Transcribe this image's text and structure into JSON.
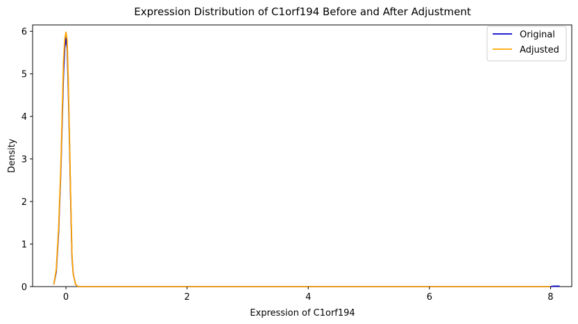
{
  "chart_data": {
    "type": "line",
    "title": "Expression Distribution of C1orf194 Before and After Adjustment",
    "xlabel": "Expression of C1orf194",
    "ylabel": "Density",
    "xlim": [
      -0.55,
      8.35
    ],
    "ylim": [
      0,
      6.15
    ],
    "xticks": [
      0,
      2,
      4,
      6,
      8
    ],
    "yticks": [
      0,
      1,
      2,
      3,
      4,
      5,
      6
    ],
    "xtick_labels": [
      "0",
      "2",
      "4",
      "6",
      "8"
    ],
    "ytick_labels": [
      "0",
      "1",
      "2",
      "3",
      "4",
      "5",
      "6"
    ],
    "grid": false,
    "legend_position": "top-right",
    "series": [
      {
        "name": "Original",
        "color": "#0000cc",
        "x": [
          -0.2,
          -0.16,
          -0.12,
          -0.08,
          -0.06,
          -0.04,
          -0.02,
          0.0,
          0.02,
          0.04,
          0.06,
          0.08,
          0.1,
          0.12,
          0.16,
          0.2,
          0.3,
          1.0,
          2.0,
          4.0,
          6.0,
          8.0,
          8.05,
          8.1,
          8.15
        ],
        "y": [
          0.05,
          0.35,
          1.3,
          2.9,
          4.0,
          5.0,
          5.6,
          5.85,
          5.6,
          4.6,
          3.3,
          1.9,
          0.7,
          0.3,
          0.05,
          0.0,
          0.0,
          0.0,
          0.0,
          0.0,
          0.0,
          0.0,
          0.01,
          0.01,
          0.01
        ]
      },
      {
        "name": "Adjusted",
        "color": "#ffa500",
        "x": [
          -0.2,
          -0.16,
          -0.12,
          -0.08,
          -0.06,
          -0.04,
          -0.02,
          0.0,
          0.02,
          0.04,
          0.06,
          0.08,
          0.1,
          0.12,
          0.16,
          0.2,
          0.3,
          1.0,
          2.0,
          4.0,
          6.0,
          8.0
        ],
        "y": [
          0.05,
          0.4,
          1.4,
          3.0,
          4.2,
          5.3,
          5.8,
          5.98,
          5.8,
          4.8,
          3.4,
          2.0,
          0.75,
          0.3,
          0.05,
          0.0,
          0.0,
          0.0,
          0.0,
          0.0,
          0.0,
          0.0
        ]
      }
    ]
  }
}
